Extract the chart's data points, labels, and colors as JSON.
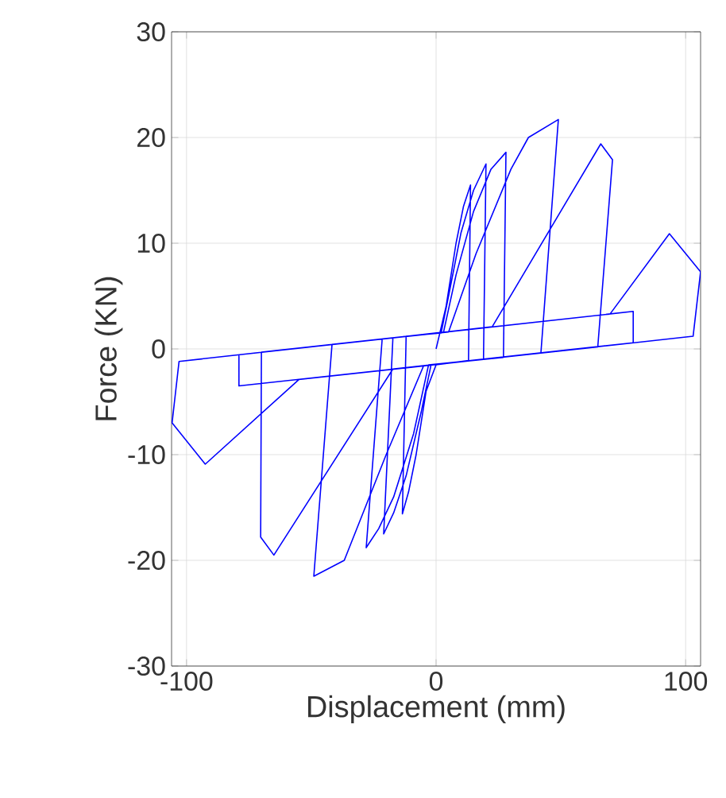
{
  "chart_data": {
    "type": "line",
    "xlabel": "Displacement (mm)",
    "ylabel": "Force (KN)",
    "x": [
      0,
      4,
      8,
      11,
      13.8,
      13,
      0,
      -4,
      -8,
      -11,
      -13.5,
      -12,
      2,
      5,
      10,
      15,
      20,
      19,
      -2,
      -6,
      -12,
      -17,
      -21,
      -17.3,
      3,
      8,
      15,
      22,
      28,
      27,
      -3,
      -9,
      -17,
      -23,
      -28,
      -21.6,
      5,
      16,
      30,
      37,
      49,
      42,
      -5,
      -20,
      -36.8,
      -49,
      -41.7,
      0,
      22.5,
      66,
      70.7,
      64.8,
      -17.3,
      -65,
      -70.3,
      -70,
      69.7,
      93.5,
      106,
      103,
      -55,
      -92.5,
      -105.8,
      -103,
      79,
      79,
      -79,
      -79
    ],
    "values": [
      0,
      4,
      10,
      13.5,
      15.5,
      -1.1,
      -1.5,
      -4,
      -10,
      -13.5,
      -15.6,
      1.2,
      1.5,
      5,
      11,
      15,
      17.5,
      -1.0,
      -1.5,
      -6,
      -12,
      -15.5,
      -17.5,
      1.05,
      1.6,
      7,
      13,
      17,
      18.6,
      -0.8,
      -1.5,
      -8,
      -14,
      -17,
      -18.8,
      0.94,
      1.6,
      9,
      17,
      20,
      21.7,
      -0.4,
      -1.6,
      -10,
      -20,
      -21.5,
      0.42,
      1.5,
      2.1,
      19.4,
      17.9,
      0.2,
      -1.9,
      -19.5,
      -17.8,
      -0.3,
      3.3,
      10.9,
      7.3,
      1.2,
      -2.9,
      -10.9,
      -7,
      -1.18,
      3.55,
      0.58,
      -3.5,
      -0.55
    ],
    "color": "#0000ff",
    "xlim": [
      -106,
      106
    ],
    "ylim": [
      -30,
      30
    ],
    "xticks": [
      -100,
      0,
      100
    ],
    "yticks": [
      -30,
      -20,
      -10,
      0,
      10,
      20,
      30
    ],
    "grid": true
  }
}
